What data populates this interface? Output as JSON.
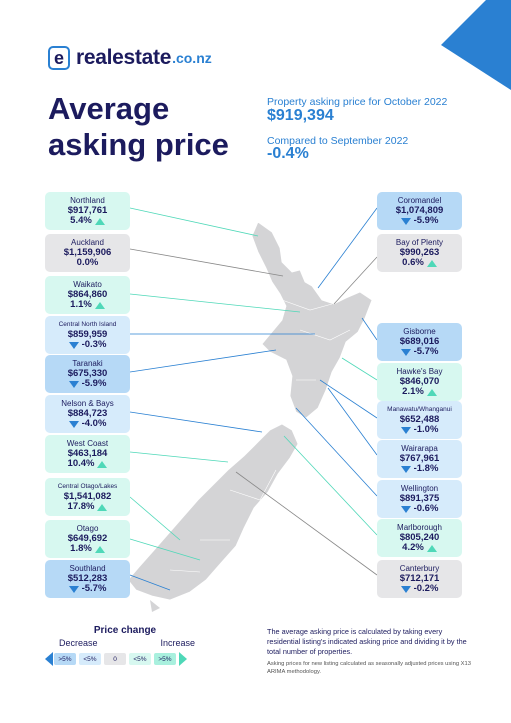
{
  "brand": {
    "name": "realestate",
    "tld": ".co.nz",
    "logo_letter": "e"
  },
  "title": "Average asking price",
  "summary": {
    "label1": "Property asking price for October 2022",
    "value1": "$919,394",
    "label2": "Compared to September 2022",
    "value2": "-0.4%"
  },
  "regions_left": [
    {
      "name": "Northland",
      "price": "$917,761",
      "change": "5.4%",
      "dir": "up"
    },
    {
      "name": "Auckland",
      "price": "$1,159,906",
      "change": "0.0%",
      "dir": "none"
    },
    {
      "name": "Waikato",
      "price": "$864,860",
      "change": "1.1%",
      "dir": "up"
    },
    {
      "name": "Central North Island",
      "price": "$859,959",
      "change": "-0.3%",
      "dir": "down"
    },
    {
      "name": "Taranaki",
      "price": "$675,330",
      "change": "-5.9%",
      "dir": "down"
    },
    {
      "name": "Nelson & Bays",
      "price": "$884,723",
      "change": "-4.0%",
      "dir": "down"
    },
    {
      "name": "West Coast",
      "price": "$463,184",
      "change": "10.4%",
      "dir": "up"
    },
    {
      "name": "Central Otago/Lakes",
      "price": "$1,541,082",
      "change": "17.8%",
      "dir": "up"
    },
    {
      "name": "Otago",
      "price": "$649,692",
      "change": "1.8%",
      "dir": "up"
    },
    {
      "name": "Southland",
      "price": "$512,283",
      "change": "-5.7%",
      "dir": "down"
    }
  ],
  "regions_right": [
    {
      "name": "Coromandel",
      "price": "$1,074,809",
      "change": "-5.9%",
      "dir": "down"
    },
    {
      "name": "Bay of Plenty",
      "price": "$990,263",
      "change": "0.6%",
      "dir": "up"
    },
    {
      "name": "Gisborne",
      "price": "$689,016",
      "change": "-5.7%",
      "dir": "down"
    },
    {
      "name": "Hawke's Bay",
      "price": "$846,070",
      "change": "2.1%",
      "dir": "up"
    },
    {
      "name": "Manawatu/Whanganui",
      "price": "$652,488",
      "change": "-1.0%",
      "dir": "down"
    },
    {
      "name": "Wairarapa",
      "price": "$767,961",
      "change": "-1.8%",
      "dir": "down"
    },
    {
      "name": "Wellington",
      "price": "$891,375",
      "change": "-0.6%",
      "dir": "down"
    },
    {
      "name": "Marlborough",
      "price": "$805,240",
      "change": "4.2%",
      "dir": "up"
    },
    {
      "name": "Canterbury",
      "price": "$712,171",
      "change": "-0.2%",
      "dir": "down"
    }
  ],
  "legend": {
    "title": "Price change",
    "decrease": "Decrease",
    "increase": "Increase",
    "buckets": [
      ">5%",
      "<5%",
      "0",
      "<5%",
      ">5%"
    ]
  },
  "note": "The average asking price is calculated by taking every residential listing's indicated asking price and dividing it by the total number of properties.",
  "note_small": "Asking prices for new listing calculated as seasonally adjusted prices using X13 ARIMA methodology.",
  "colors": {
    "navy": "#1c1b5e",
    "blue": "#2a80d2",
    "teal": "#4fd8b8",
    "up_bg": "#d7f8f0",
    "zero_bg": "#e6e6e8",
    "down_bg": "#d6ebfb",
    "down_strong_bg": "#b6d9f6",
    "map": "#d4d4d6"
  }
}
